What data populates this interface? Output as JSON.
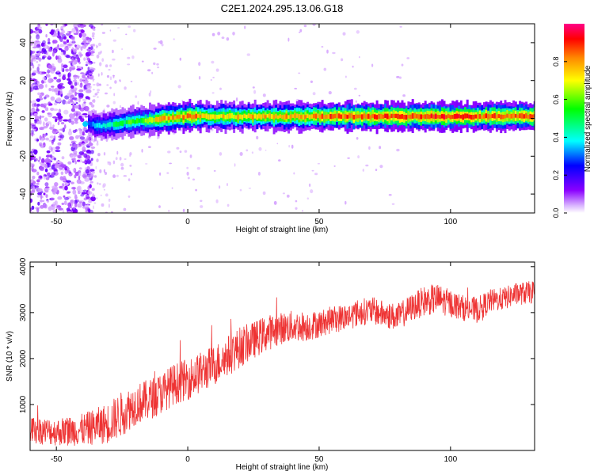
{
  "title": "C2E1.2024.295.13.06.G18",
  "colors": {
    "snr_line": "#ee3333",
    "spectro_bg_low": "#d6c2ff",
    "spectro_dense": "#6a1fff"
  },
  "chart_data": [
    {
      "type": "heatmap",
      "xlabel": "Height of straight line (km)",
      "ylabel": "Frequency (Hz)",
      "xlim": [
        -60,
        132
      ],
      "ylim": [
        -50,
        50
      ],
      "x_ticks": [
        -50,
        0,
        50,
        100
      ],
      "y_ticks": [
        -40,
        -20,
        0,
        20,
        40
      ],
      "colorbar": {
        "label": "Normalized spectral amplitude",
        "range": [
          0,
          1
        ],
        "ticks": [
          0.0,
          0.2,
          0.4,
          0.6,
          0.8
        ],
        "colormap": [
          "#ffffff",
          "#8a00ff",
          "#0000ff",
          "#00ffff",
          "#00ff00",
          "#ffff00",
          "#ff8800",
          "#ff0000",
          "#ff0088"
        ]
      },
      "ridge": {
        "x": [
          -38,
          -34,
          -30,
          -25,
          -20,
          -15,
          -10,
          -5,
          0,
          5,
          10,
          20,
          30,
          40,
          50,
          60,
          70,
          80,
          90,
          100,
          110,
          120,
          132
        ],
        "frequency": [
          -3,
          -4,
          -3.5,
          -2.5,
          -1.5,
          -1,
          0,
          0.5,
          1,
          1,
          1,
          1,
          1,
          1,
          1,
          1,
          1,
          1,
          1,
          1,
          1,
          1,
          1
        ],
        "amplitude": [
          0.3,
          0.4,
          0.45,
          0.5,
          0.55,
          0.6,
          0.75,
          0.75,
          0.8,
          0.75,
          0.7,
          0.7,
          0.75,
          0.75,
          0.8,
          0.85,
          0.85,
          0.85,
          0.9,
          0.9,
          0.85,
          0.85,
          0.85
        ]
      }
    },
    {
      "type": "line",
      "xlabel": "Height of straight line (km)",
      "ylabel": "SNR (10 * v/v)",
      "xlim": [
        -60,
        132
      ],
      "ylim": [
        0,
        4100
      ],
      "x_ticks": [
        -50,
        0,
        50,
        100
      ],
      "y_ticks": [
        1000,
        2000,
        3000,
        4000
      ],
      "series": [
        {
          "color": "#ee3333",
          "x": [
            -60,
            -50,
            -40,
            -30,
            -25,
            -20,
            -15,
            -10,
            -5,
            0,
            5,
            10,
            15,
            20,
            25,
            30,
            35,
            40,
            45,
            50,
            55,
            60,
            65,
            70,
            75,
            80,
            85,
            90,
            95,
            100,
            105,
            110,
            115,
            120,
            125,
            132
          ],
          "y": [
            450,
            400,
            450,
            600,
            800,
            1000,
            1100,
            1250,
            1450,
            1550,
            1700,
            1850,
            2050,
            2250,
            2400,
            2550,
            2650,
            2700,
            2700,
            2750,
            2850,
            2900,
            3000,
            3050,
            2950,
            2900,
            3100,
            3250,
            3300,
            3200,
            3100,
            3050,
            3250,
            3300,
            3400,
            3450
          ],
          "noise": [
            300,
            300,
            350,
            450,
            500,
            450,
            450,
            450,
            450,
            450,
            450,
            450,
            450,
            450,
            400,
            400,
            350,
            350,
            330,
            300,
            300,
            300,
            300,
            300,
            300,
            300,
            300,
            330,
            330,
            300,
            280,
            280,
            260,
            250,
            250,
            250
          ]
        }
      ]
    }
  ]
}
